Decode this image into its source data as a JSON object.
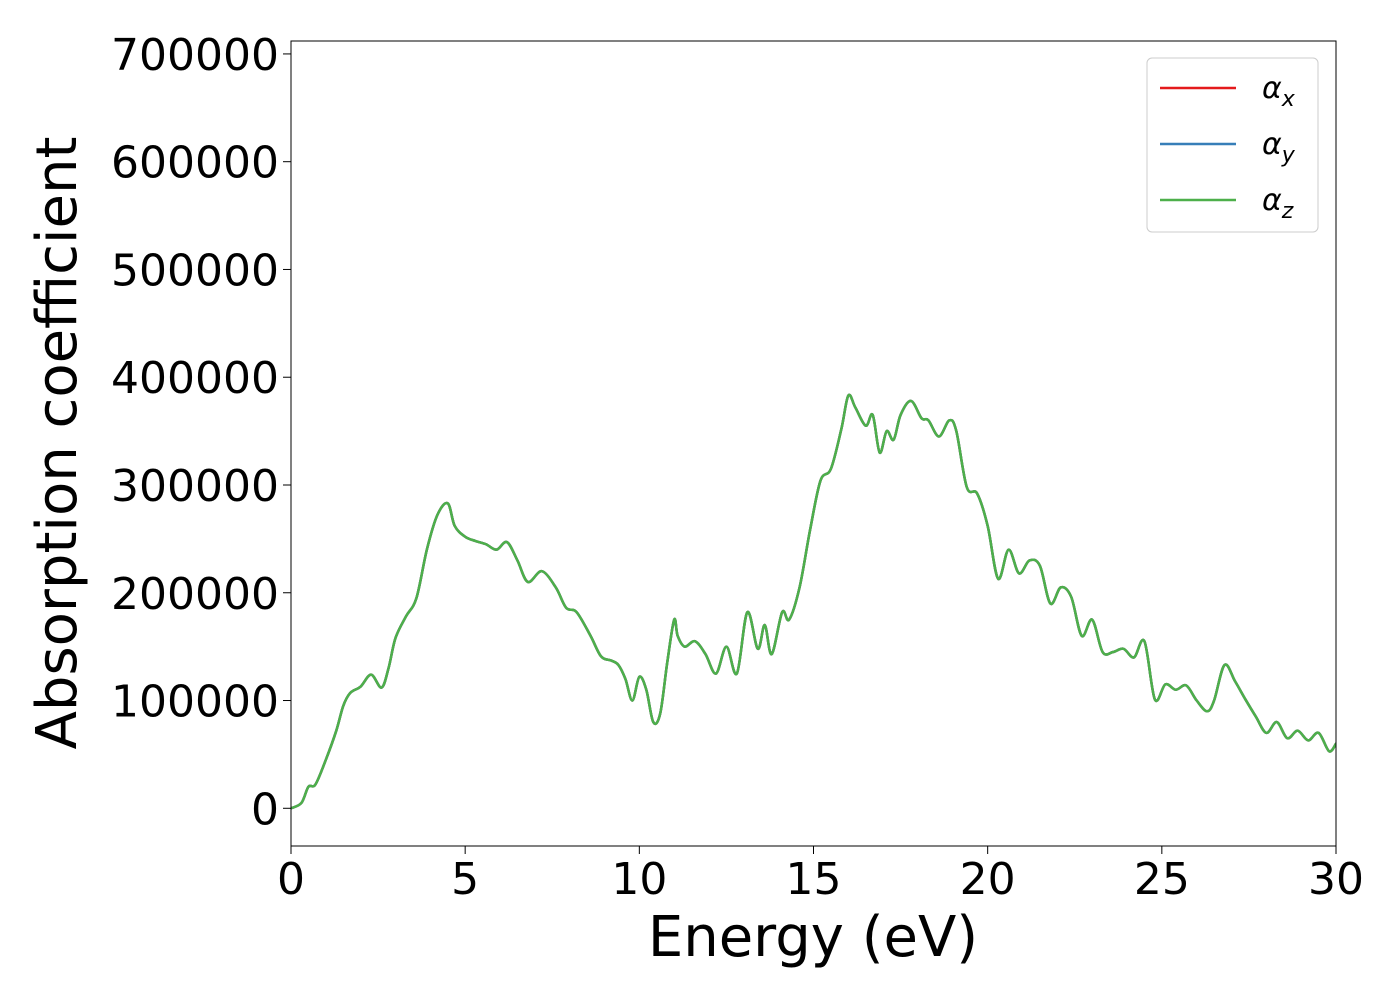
{
  "chart_data": {
    "type": "line",
    "title": "",
    "xlabel": "Energy (eV)",
    "ylabel": "Absorption coefficient",
    "xlim": [
      0,
      30
    ],
    "ylim": [
      -35000,
      712000
    ],
    "xticks": [
      0,
      5,
      10,
      15,
      20,
      25,
      30
    ],
    "yticks": [
      0,
      100000,
      200000,
      300000,
      400000,
      500000,
      600000,
      700000
    ],
    "grid": false,
    "legend_position": "upper right",
    "series": [
      {
        "name": "α",
        "subscript": "x",
        "color": "#e41a1c",
        "x": [
          0.0,
          0.3,
          0.5,
          0.7,
          1.0,
          1.3,
          1.5,
          1.7,
          2.0,
          2.3,
          2.6,
          2.8,
          3.0,
          3.3,
          3.6,
          3.9,
          4.2,
          4.5,
          4.7,
          5.0,
          5.3,
          5.6,
          5.9,
          6.2,
          6.5,
          6.8,
          7.2,
          7.6,
          7.9,
          8.2,
          8.6,
          8.9,
          9.2,
          9.4,
          9.6,
          9.8,
          10.0,
          10.2,
          10.4,
          10.6,
          10.8,
          11.0,
          11.1,
          11.3,
          11.6,
          11.9,
          12.2,
          12.5,
          12.8,
          13.1,
          13.4,
          13.6,
          13.8,
          14.1,
          14.3,
          14.6,
          14.9,
          15.2,
          15.5,
          15.8,
          16.0,
          16.2,
          16.5,
          16.7,
          16.9,
          17.1,
          17.3,
          17.5,
          17.8,
          18.1,
          18.3,
          18.6,
          18.9,
          19.1,
          19.4,
          19.7,
          20.0,
          20.3,
          20.6,
          20.9,
          21.2,
          21.5,
          21.8,
          22.1,
          22.4,
          22.7,
          23.0,
          23.3,
          23.6,
          23.9,
          24.2,
          24.5,
          24.8,
          25.1,
          25.4,
          25.7,
          26.0,
          26.3,
          26.5,
          26.8,
          27.1,
          27.4,
          27.7,
          28.0,
          28.3,
          28.6,
          28.9,
          29.2,
          29.5,
          29.8,
          30.0
        ],
        "values": [
          0,
          5000,
          20000,
          22000,
          45000,
          72000,
          95000,
          107000,
          113000,
          124000,
          112000,
          130000,
          158000,
          178000,
          195000,
          240000,
          272000,
          283000,
          262000,
          252000,
          248000,
          245000,
          240000,
          247000,
          230000,
          210000,
          220000,
          205000,
          186000,
          182000,
          160000,
          141000,
          137000,
          133000,
          120000,
          100000,
          122000,
          110000,
          80000,
          88000,
          135000,
          175000,
          160000,
          150000,
          155000,
          143000,
          125000,
          150000,
          125000,
          182000,
          148000,
          170000,
          143000,
          182000,
          175000,
          205000,
          258000,
          304000,
          315000,
          352000,
          383000,
          372000,
          355000,
          365000,
          330000,
          350000,
          342000,
          365000,
          378000,
          362000,
          360000,
          345000,
          360000,
          350000,
          298000,
          292000,
          262000,
          213000,
          240000,
          218000,
          230000,
          225000,
          190000,
          205000,
          196000,
          160000,
          175000,
          145000,
          145000,
          148000,
          140000,
          155000,
          101000,
          115000,
          110000,
          114000,
          100000,
          90000,
          100000,
          133000,
          118000,
          101000,
          85000,
          70000,
          80000,
          65000,
          72000,
          63000,
          70000,
          53000,
          60000
        ]
      },
      {
        "name": "α",
        "subscript": "y",
        "color": "#377eb8",
        "x": [
          0.0,
          0.3,
          0.5,
          0.7,
          1.0,
          1.3,
          1.5,
          1.7,
          2.0,
          2.3,
          2.6,
          2.8,
          3.0,
          3.3,
          3.6,
          3.9,
          4.2,
          4.5,
          4.7,
          5.0,
          5.3,
          5.6,
          5.9,
          6.2,
          6.5,
          6.8,
          7.2,
          7.6,
          7.9,
          8.2,
          8.6,
          8.9,
          9.2,
          9.4,
          9.6,
          9.8,
          10.0,
          10.2,
          10.4,
          10.6,
          10.8,
          11.0,
          11.1,
          11.3,
          11.6,
          11.9,
          12.2,
          12.5,
          12.8,
          13.1,
          13.4,
          13.6,
          13.8,
          14.1,
          14.3,
          14.6,
          14.9,
          15.2,
          15.5,
          15.8,
          16.0,
          16.2,
          16.5,
          16.7,
          16.9,
          17.1,
          17.3,
          17.5,
          17.8,
          18.1,
          18.3,
          18.6,
          18.9,
          19.1,
          19.4,
          19.7,
          20.0,
          20.3,
          20.6,
          20.9,
          21.2,
          21.5,
          21.8,
          22.1,
          22.4,
          22.7,
          23.0,
          23.3,
          23.6,
          23.9,
          24.2,
          24.5,
          24.8,
          25.1,
          25.4,
          25.7,
          26.0,
          26.3,
          26.5,
          26.8,
          27.1,
          27.4,
          27.7,
          28.0,
          28.3,
          28.6,
          28.9,
          29.2,
          29.5,
          29.8,
          30.0
        ],
        "values": [
          0,
          5000,
          20000,
          22000,
          45000,
          72000,
          95000,
          107000,
          113000,
          124000,
          112000,
          130000,
          158000,
          178000,
          195000,
          240000,
          272000,
          283000,
          262000,
          252000,
          248000,
          245000,
          240000,
          247000,
          230000,
          210000,
          220000,
          205000,
          186000,
          182000,
          160000,
          141000,
          137000,
          133000,
          120000,
          100000,
          122000,
          110000,
          80000,
          88000,
          135000,
          175000,
          160000,
          150000,
          155000,
          143000,
          125000,
          150000,
          125000,
          182000,
          148000,
          170000,
          143000,
          182000,
          175000,
          205000,
          258000,
          304000,
          315000,
          352000,
          383000,
          372000,
          355000,
          365000,
          330000,
          350000,
          342000,
          365000,
          378000,
          362000,
          360000,
          345000,
          360000,
          350000,
          298000,
          292000,
          262000,
          213000,
          240000,
          218000,
          230000,
          225000,
          190000,
          205000,
          196000,
          160000,
          175000,
          145000,
          145000,
          148000,
          140000,
          155000,
          101000,
          115000,
          110000,
          114000,
          100000,
          90000,
          100000,
          133000,
          118000,
          101000,
          85000,
          70000,
          80000,
          65000,
          72000,
          63000,
          70000,
          53000,
          60000
        ]
      },
      {
        "name": "α",
        "subscript": "z",
        "color": "#4daf4a",
        "x": [
          0.0,
          0.3,
          0.5,
          0.7,
          1.0,
          1.3,
          1.5,
          1.7,
          2.0,
          2.3,
          2.6,
          2.8,
          3.0,
          3.3,
          3.6,
          3.9,
          4.2,
          4.5,
          4.7,
          5.0,
          5.3,
          5.6,
          5.9,
          6.2,
          6.5,
          6.8,
          7.2,
          7.6,
          7.9,
          8.2,
          8.6,
          8.9,
          9.2,
          9.4,
          9.6,
          9.8,
          10.0,
          10.2,
          10.4,
          10.6,
          10.8,
          11.0,
          11.1,
          11.3,
          11.6,
          11.9,
          12.2,
          12.5,
          12.8,
          13.1,
          13.4,
          13.6,
          13.8,
          14.1,
          14.3,
          14.6,
          14.9,
          15.2,
          15.5,
          15.8,
          16.0,
          16.2,
          16.5,
          16.7,
          16.9,
          17.1,
          17.3,
          17.5,
          17.8,
          18.1,
          18.3,
          18.6,
          18.9,
          19.1,
          19.4,
          19.7,
          20.0,
          20.3,
          20.6,
          20.9,
          21.2,
          21.5,
          21.8,
          22.1,
          22.4,
          22.7,
          23.0,
          23.3,
          23.6,
          23.9,
          24.2,
          24.5,
          24.8,
          25.1,
          25.4,
          25.7,
          26.0,
          26.3,
          26.5,
          26.8,
          27.1,
          27.4,
          27.7,
          28.0,
          28.3,
          28.6,
          28.9,
          29.2,
          29.5,
          29.8,
          30.0
        ],
        "values": [
          0,
          5000,
          20000,
          22000,
          45000,
          72000,
          95000,
          107000,
          113000,
          124000,
          112000,
          130000,
          158000,
          178000,
          195000,
          240000,
          272000,
          283000,
          262000,
          252000,
          248000,
          245000,
          240000,
          247000,
          230000,
          210000,
          220000,
          205000,
          186000,
          182000,
          160000,
          141000,
          137000,
          133000,
          120000,
          100000,
          122000,
          110000,
          80000,
          88000,
          135000,
          175000,
          160000,
          150000,
          155000,
          143000,
          125000,
          150000,
          125000,
          182000,
          148000,
          170000,
          143000,
          182000,
          175000,
          205000,
          258000,
          304000,
          315000,
          352000,
          383000,
          372000,
          355000,
          365000,
          330000,
          350000,
          342000,
          365000,
          378000,
          362000,
          360000,
          345000,
          360000,
          350000,
          298000,
          292000,
          262000,
          213000,
          240000,
          218000,
          230000,
          225000,
          190000,
          205000,
          196000,
          160000,
          175000,
          145000,
          145000,
          148000,
          140000,
          155000,
          101000,
          115000,
          110000,
          114000,
          100000,
          90000,
          100000,
          133000,
          118000,
          101000,
          85000,
          70000,
          80000,
          65000,
          72000,
          63000,
          70000,
          53000,
          60000
        ]
      }
    ]
  }
}
